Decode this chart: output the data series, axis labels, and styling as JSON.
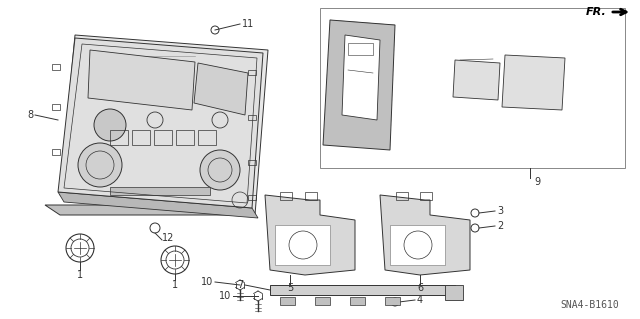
{
  "bg_color": "#ffffff",
  "line_color": "#333333",
  "text_color": "#333333",
  "diagram_id": "SNA4-B1610",
  "fr_label": "FR.",
  "panel_color": "#d0d0d0",
  "shadow_color": "#a0a0a0"
}
